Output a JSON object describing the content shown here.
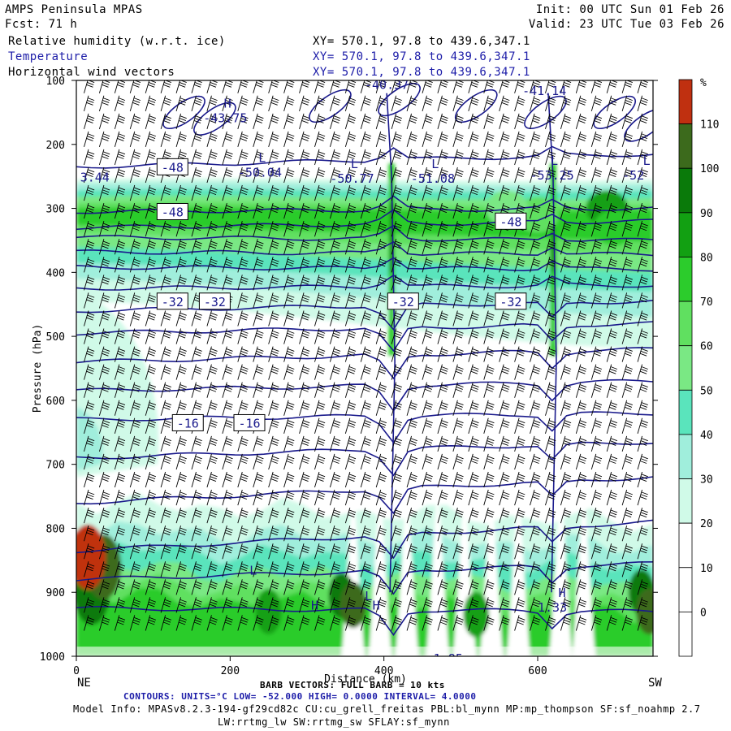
{
  "header": {
    "model": "AMPS Peninsula MPAS",
    "forecast": "Fcst:    71 h",
    "init": "Init: 00 UTC Sun 01 Feb 26",
    "valid": "Valid: 23 UTC Tue 03 Feb 26",
    "fields": [
      {
        "name": "Relative humidity (w.r.t. ice)",
        "xy": "XY= 570.1, 97.8 to 439.6,347.1"
      },
      {
        "name": "Temperature",
        "xy": "XY= 570.1, 97.8 to 439.6,347.1"
      },
      {
        "name": "Horizontal wind vectors",
        "xy": "XY= 570.1, 97.8 to 439.6,347.1"
      }
    ]
  },
  "footer": {
    "barb": "BARB VECTORS:  FULL BARB = 10 kts",
    "contours": "CONTOURS:  UNITS=°C  LOW=  -52.000        HIGH=  0.0000      INTERVAL=    4.0000",
    "model_info": "Model Info: MPASv8.2.3-194-gf29cd82c CU:cu_grell_freitas PBL:bl_mynn MP:mp_thompson SF:sf_noahmp 2.7",
    "model_info2": "LW:rrtmg_lw SW:rrtmg_sw SFLAY:sf_mynn"
  },
  "chart_data": {
    "type": "heatmap",
    "ylabel": "Pressure (hPa)",
    "xlabel": "Distance (km)",
    "x_left_label": "NE",
    "x_right_label": "SW",
    "xlim": [
      0,
      750
    ],
    "ylim": [
      1000,
      100
    ],
    "x_ticks": [
      0,
      200,
      400,
      600
    ],
    "y_ticks": [
      100,
      200,
      300,
      400,
      500,
      600,
      700,
      800,
      900,
      1000
    ],
    "colorbar": {
      "unit": "%",
      "labels": [
        0,
        10,
        20,
        30,
        40,
        50,
        60,
        70,
        80,
        90,
        100,
        110
      ],
      "colors": [
        "#ffffff",
        "#ffffff",
        "#ffffff",
        "#d0fae8",
        "#a0eedc",
        "#5ae4bc",
        "#7ae884",
        "#60e060",
        "#2ccc2c",
        "#12a012",
        "#0a7a0a",
        "#3c6a1c",
        "#c03010"
      ]
    },
    "temperature_contours": [
      -48,
      -44,
      -40,
      -36,
      -32,
      -28,
      -24,
      -20,
      -16,
      -12,
      -8,
      -4,
      0
    ],
    "temperature_labels": [
      {
        "text": "-48",
        "x": 125,
        "p": 235
      },
      {
        "text": "-48",
        "x": 125,
        "p": 305
      },
      {
        "text": "-48",
        "x": 565,
        "p": 320
      },
      {
        "text": "-32",
        "x": 125,
        "p": 445
      },
      {
        "text": "-32",
        "x": 180,
        "p": 445
      },
      {
        "text": "-32",
        "x": 425,
        "p": 445
      },
      {
        "text": "-32",
        "x": 565,
        "p": 445
      },
      {
        "text": "-16",
        "x": 145,
        "p": 635
      },
      {
        "text": "-16",
        "x": 225,
        "p": 635
      }
    ],
    "pressure_extrema": [
      {
        "type": "H",
        "value": "-43.75",
        "x": 165,
        "p": 155
      },
      {
        "type": "L",
        "value": "-50.04",
        "x": 210,
        "p": 240
      },
      {
        "type": "L",
        "value": "-50.77",
        "x": 330,
        "p": 250
      },
      {
        "type": "L",
        "value": "-51.08",
        "x": 435,
        "p": 250
      },
      {
        "type": "L",
        "value": "-53.25",
        "x": 590,
        "p": 245
      },
      {
        "type": "L",
        "value": "-52",
        "x": 710,
        "p": 245
      },
      {
        "type": "",
        "value": "-40.37",
        "x": 375,
        "p": 103
      },
      {
        "type": "",
        "value": "-41.14",
        "x": 580,
        "p": 113
      },
      {
        "type": "",
        "value": "3.44",
        "x": 5,
        "p": 248
      },
      {
        "type": "H",
        "value": "1.33",
        "x": 600,
        "p": 920
      },
      {
        "type": "H",
        "value": "",
        "x": 310,
        "p": 940
      },
      {
        "type": "H",
        "value": "",
        "x": 390,
        "p": 940
      },
      {
        "type": "L",
        "value": "",
        "x": 230,
        "p": 885
      },
      {
        "type": "L",
        "value": "",
        "x": 380,
        "p": 925
      },
      {
        "type": "",
        "value": "-1.85",
        "x": 455,
        "p": 1000
      }
    ]
  }
}
